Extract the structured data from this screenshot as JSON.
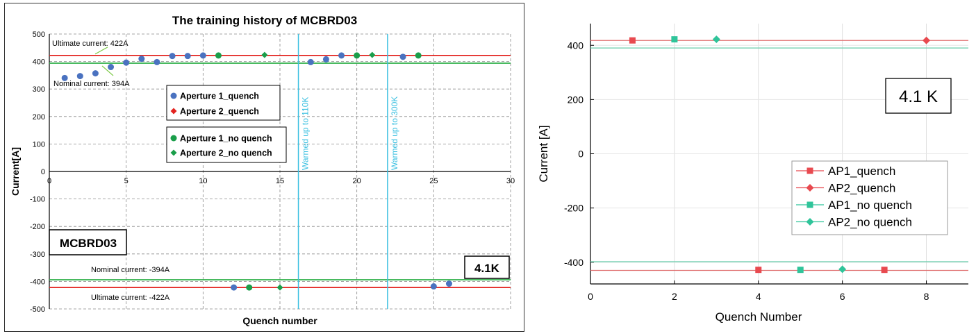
{
  "chart_data": [
    {
      "type": "scatter",
      "title": "The training history of MCBRD03",
      "xlabel": "Quench number",
      "ylabel": "Current[A]",
      "xlim": [
        0,
        30
      ],
      "ylim": [
        -500,
        500
      ],
      "xticks": [
        "0",
        "5",
        "10",
        "15",
        "20",
        "25",
        "30"
      ],
      "yticks": [
        "500",
        "400",
        "300",
        "200",
        "100",
        "0",
        "-100",
        "-200",
        "-300",
        "-400",
        "-500"
      ],
      "grid": true,
      "reference_lines": [
        {
          "label": "Ultimate current: 422A",
          "y": 422,
          "color": "#e3231f"
        },
        {
          "label": "Nominal current: 394A",
          "y": 394,
          "color": "#2fb04a"
        },
        {
          "label": "Nominal current: -394A",
          "y": -394,
          "color": "#2fb04a"
        },
        {
          "label": "Ultimate current: -422A",
          "y": -422,
          "color": "#e3231f"
        }
      ],
      "vertical_lines": [
        {
          "label": "Warmed up to 110K",
          "x": 16.2,
          "color": "#38bfe0"
        },
        {
          "label": "Warmed up to 300K",
          "x": 22,
          "color": "#38bfe0"
        }
      ],
      "series": [
        {
          "name": "Aperture 1_quench",
          "marker": "circle",
          "color": "#4a72c0",
          "x": [
            1,
            2,
            3,
            4,
            5,
            6,
            7,
            8,
            9,
            10,
            17,
            18,
            19,
            23,
            12,
            25,
            26
          ],
          "y": [
            340,
            347,
            357,
            380,
            396,
            410,
            398,
            420,
            420,
            422,
            398,
            408,
            422,
            417,
            -422,
            -418,
            -408
          ]
        },
        {
          "name": "Aperture 2_quench",
          "marker": "diamond",
          "color": "#e3231f",
          "x": [],
          "y": []
        },
        {
          "name": "Aperture 1_no quench",
          "marker": "circle",
          "color": "#1a9e4a",
          "x": [
            11,
            20,
            24,
            13
          ],
          "y": [
            422,
            422,
            422,
            -422
          ]
        },
        {
          "name": "Aperture 2_no quench",
          "marker": "diamond",
          "color": "#1a9e4a",
          "x": [
            14,
            21,
            15
          ],
          "y": [
            424,
            424,
            -422
          ]
        }
      ],
      "legend_placement": "center-left",
      "annotations": {
        "magnet_label": "MCBRD03",
        "temperature_label": "4.1K"
      }
    },
    {
      "type": "scatter",
      "title": "",
      "xlabel": "Quench Number",
      "ylabel": "Current [A]",
      "xlim": [
        0,
        9
      ],
      "ylim": [
        -480,
        480
      ],
      "xticks": [
        "0",
        "2",
        "4",
        "6",
        "8"
      ],
      "yticks": [
        "400",
        "200",
        "0",
        "-200",
        "-400"
      ],
      "grid": true,
      "reference_lines": [
        {
          "y": 418,
          "color": "#e07070"
        },
        {
          "y": 390,
          "color": "#66ccaa"
        },
        {
          "y": -398,
          "color": "#66ccaa"
        },
        {
          "y": -430,
          "color": "#e07070"
        }
      ],
      "series": [
        {
          "name": "AP1_quench",
          "marker": "square",
          "color": "#e8494f",
          "x": [
            1,
            4,
            7
          ],
          "y": [
            418,
            -428,
            -428
          ]
        },
        {
          "name": "AP2_quench",
          "marker": "diamond",
          "color": "#e8494f",
          "x": [
            8
          ],
          "y": [
            418
          ]
        },
        {
          "name": "AP1_no quench",
          "marker": "square",
          "color": "#2fc49a",
          "x": [
            2,
            5
          ],
          "y": [
            422,
            -428
          ]
        },
        {
          "name": "AP2_no quench",
          "marker": "diamond",
          "color": "#2fc49a",
          "x": [
            3,
            6
          ],
          "y": [
            422,
            -426
          ]
        }
      ],
      "legend_placement": "lower-right",
      "annotations": {
        "temperature_label": "4.1 K"
      }
    }
  ]
}
